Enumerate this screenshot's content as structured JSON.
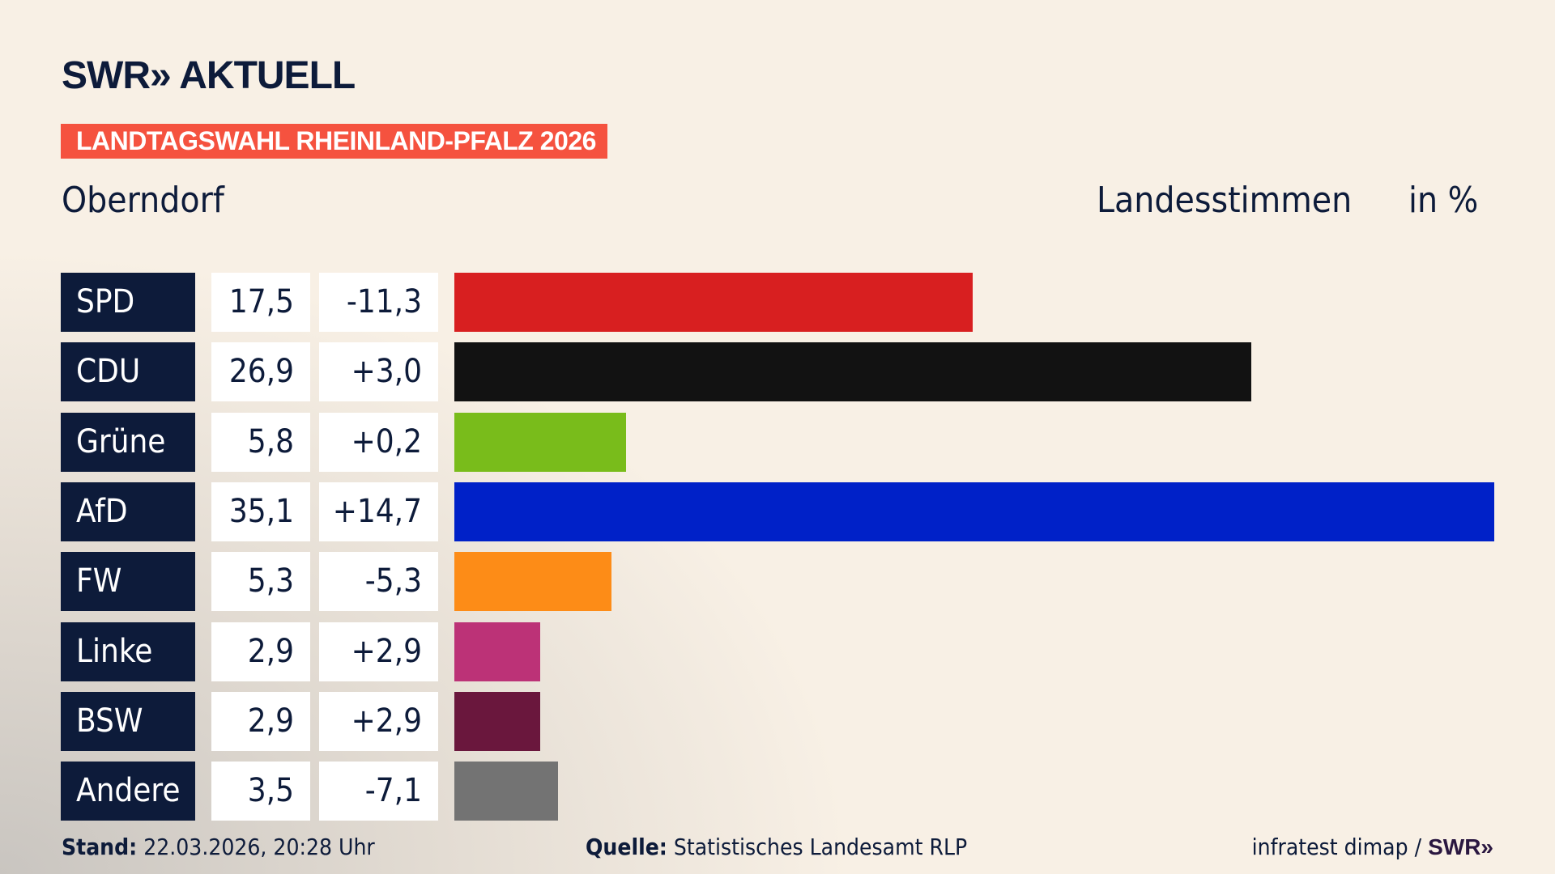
{
  "header": {
    "logo": "SWR» AKTUELL",
    "banner": "LANDTAGSWAHL RHEINLAND-PFALZ 2026",
    "location": "Oberndorf",
    "vote_type": "Landesstimmen",
    "unit": "in %"
  },
  "chart_data": {
    "type": "bar",
    "orientation": "horizontal",
    "categories": [
      "SPD",
      "CDU",
      "Grüne",
      "AfD",
      "FW",
      "Linke",
      "BSW",
      "Andere"
    ],
    "values": [
      17.5,
      26.9,
      5.8,
      35.1,
      5.3,
      2.9,
      2.9,
      3.5
    ],
    "value_labels": [
      "17,5",
      "26,9",
      "5,8",
      "35,1",
      "5,3",
      "2,9",
      "2,9",
      "3,5"
    ],
    "diffs": [
      -11.3,
      3.0,
      0.2,
      14.7,
      -5.3,
      2.9,
      2.9,
      -7.1
    ],
    "diff_labels": [
      "-11,3",
      "+3,0",
      "+0,2",
      "+14,7",
      "-5,3",
      "+2,9",
      "+2,9",
      "-7,1"
    ],
    "colors": [
      "#d81f20",
      "#121212",
      "#79bc1b",
      "#0021c8",
      "#fd8c17",
      "#bc3277",
      "#6a173d",
      "#737373"
    ],
    "xlim": [
      0,
      35.1
    ]
  },
  "footer": {
    "stand_label": "Stand:",
    "stand_value": "22.03.2026, 20:28 Uhr",
    "source_label": "Quelle:",
    "source_value": "Statistisches Landesamt RLP",
    "credit": "infratest dimap /",
    "credit_logo": "SWR»"
  }
}
